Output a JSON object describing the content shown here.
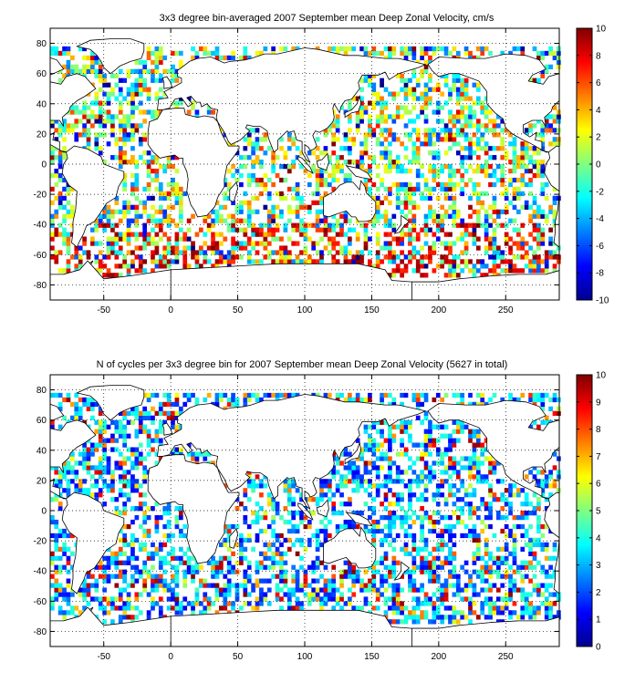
{
  "chart_data": [
    {
      "type": "heatmap",
      "title": "3x3 degree bin-averaged 2007 September mean Deep Zonal Velocity, cm/s",
      "xlabel": "",
      "ylabel": "",
      "xlim": [
        -90,
        290
      ],
      "ylim": [
        -90,
        90
      ],
      "x_ticks": [
        -50,
        0,
        50,
        100,
        150,
        200,
        250
      ],
      "y_ticks": [
        80,
        60,
        40,
        20,
        0,
        -20,
        -40,
        -60,
        -80
      ],
      "bin_size_deg": 3,
      "grid": true,
      "colorbar": {
        "min": -10,
        "max": 10,
        "ticks": [
          10,
          8,
          6,
          4,
          2,
          0,
          -2,
          -4,
          -6,
          -8,
          -10
        ],
        "colormap": "jet",
        "placement": "right"
      }
    },
    {
      "type": "heatmap",
      "title": "N of cycles per 3x3 degree bin for 2007 September mean Deep Zonal Velocity (5627 in total)",
      "xlabel": "",
      "ylabel": "",
      "xlim": [
        -90,
        290
      ],
      "ylim": [
        -90,
        90
      ],
      "x_ticks": [
        -50,
        0,
        50,
        100,
        150,
        200,
        250
      ],
      "y_ticks": [
        80,
        60,
        40,
        20,
        0,
        -20,
        -40,
        -60,
        -80
      ],
      "bin_size_deg": 3,
      "grid": true,
      "total_cycles": 5627,
      "colorbar": {
        "min": 0,
        "max": 10,
        "ticks": [
          10,
          9,
          8,
          7,
          6,
          5,
          4,
          3,
          2,
          1,
          0
        ],
        "colormap": "jet",
        "placement": "right"
      }
    }
  ]
}
